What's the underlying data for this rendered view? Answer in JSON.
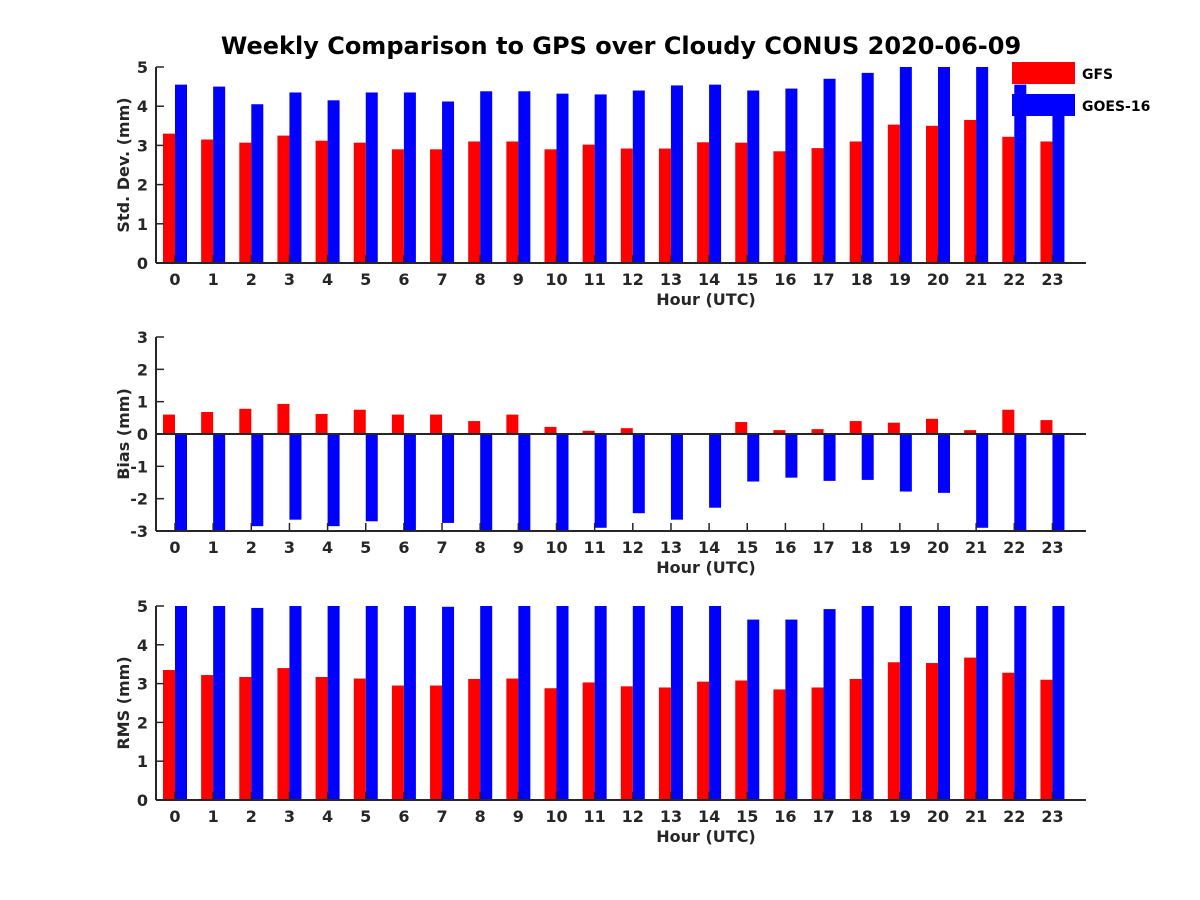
{
  "figure": {
    "title": "Weekly Comparison to GPS over Cloudy CONUS 2020-06-09"
  },
  "legend": {
    "placement": "top-right",
    "entries": [
      {
        "name": "GFS",
        "color": "#ff0000"
      },
      {
        "name": "GOES-16",
        "color": "#0000ff"
      }
    ]
  },
  "chart_data": [
    {
      "type": "bar",
      "xlabel": "Hour (UTC)",
      "ylabel": "Std. Dev. (mm)",
      "ylim": [
        0,
        5
      ],
      "yticks": [
        0,
        1,
        2,
        3,
        4,
        5
      ],
      "categories": [
        "0",
        "1",
        "2",
        "3",
        "4",
        "5",
        "6",
        "7",
        "8",
        "9",
        "10",
        "11",
        "12",
        "13",
        "14",
        "15",
        "16",
        "17",
        "18",
        "19",
        "20",
        "21",
        "22",
        "23"
      ],
      "series": [
        {
          "name": "GFS",
          "color": "#ff0000",
          "values": [
            3.3,
            3.15,
            3.07,
            3.25,
            3.12,
            3.07,
            2.9,
            2.9,
            3.1,
            3.1,
            2.9,
            3.02,
            2.92,
            2.92,
            3.08,
            3.07,
            2.85,
            2.93,
            3.1,
            3.53,
            3.5,
            3.65,
            3.22,
            3.1
          ]
        },
        {
          "name": "GOES-16",
          "color": "#0000ff",
          "values": [
            4.55,
            4.5,
            4.05,
            4.35,
            4.15,
            4.35,
            4.35,
            4.12,
            4.38,
            4.38,
            4.32,
            4.3,
            4.4,
            4.53,
            4.55,
            4.4,
            4.45,
            4.7,
            4.85,
            5.0,
            5.0,
            5.0,
            4.55,
            3.8
          ]
        }
      ]
    },
    {
      "type": "bar",
      "xlabel": "Hour (UTC)",
      "ylabel": "Bias (mm)",
      "ylim": [
        -3,
        3
      ],
      "yticks": [
        -3,
        -2,
        -1,
        0,
        1,
        2,
        3
      ],
      "categories": [
        "0",
        "1",
        "2",
        "3",
        "4",
        "5",
        "6",
        "7",
        "8",
        "9",
        "10",
        "11",
        "12",
        "13",
        "14",
        "15",
        "16",
        "17",
        "18",
        "19",
        "20",
        "21",
        "22",
        "23"
      ],
      "series": [
        {
          "name": "GFS",
          "color": "#ff0000",
          "values": [
            0.6,
            0.68,
            0.78,
            0.93,
            0.62,
            0.75,
            0.6,
            0.6,
            0.4,
            0.6,
            0.22,
            0.1,
            0.18,
            0.0,
            0.03,
            0.37,
            0.12,
            0.15,
            0.4,
            0.35,
            0.47,
            0.12,
            0.75,
            0.43
          ]
        },
        {
          "name": "GOES-16",
          "color": "#0000ff",
          "values": [
            -3.0,
            -3.0,
            -2.85,
            -2.65,
            -2.85,
            -2.7,
            -3.0,
            -2.75,
            -3.0,
            -3.0,
            -3.0,
            -2.9,
            -2.45,
            -2.65,
            -2.28,
            -1.47,
            -1.35,
            -1.45,
            -1.42,
            -1.78,
            -1.82,
            -2.9,
            -3.0,
            -3.0
          ]
        }
      ]
    },
    {
      "type": "bar",
      "xlabel": "Hour (UTC)",
      "ylabel": "RMS (mm)",
      "ylim": [
        0,
        5
      ],
      "yticks": [
        0,
        1,
        2,
        3,
        4,
        5
      ],
      "categories": [
        "0",
        "1",
        "2",
        "3",
        "4",
        "5",
        "6",
        "7",
        "8",
        "9",
        "10",
        "11",
        "12",
        "13",
        "14",
        "15",
        "16",
        "17",
        "18",
        "19",
        "20",
        "21",
        "22",
        "23"
      ],
      "series": [
        {
          "name": "GFS",
          "color": "#ff0000",
          "values": [
            3.35,
            3.22,
            3.17,
            3.4,
            3.17,
            3.13,
            2.95,
            2.95,
            3.12,
            3.13,
            2.88,
            3.03,
            2.93,
            2.9,
            3.05,
            3.08,
            2.85,
            2.9,
            3.12,
            3.55,
            3.53,
            3.67,
            3.28,
            3.1
          ]
        },
        {
          "name": "GOES-16",
          "color": "#0000ff",
          "values": [
            5.0,
            5.0,
            4.95,
            5.0,
            5.0,
            5.0,
            5.0,
            4.98,
            5.0,
            5.0,
            5.0,
            5.0,
            5.0,
            5.0,
            5.0,
            4.65,
            4.65,
            4.92,
            5.0,
            5.0,
            5.0,
            5.0,
            5.0,
            5.0
          ]
        }
      ]
    }
  ]
}
